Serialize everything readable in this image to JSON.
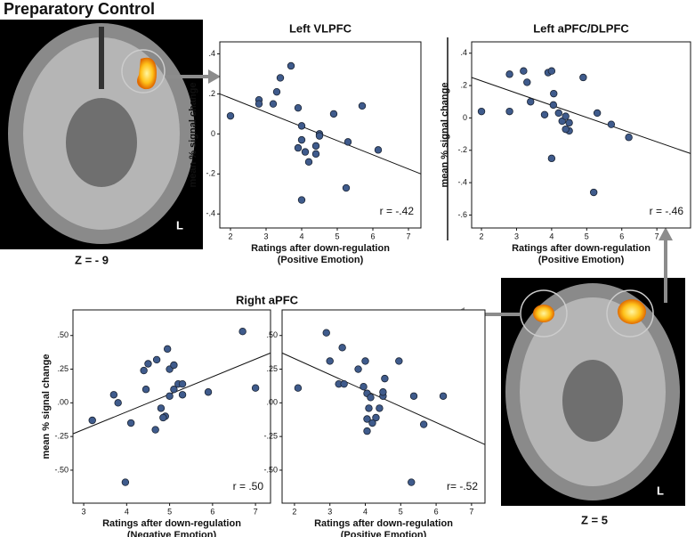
{
  "figure": {
    "title": "Preparatory  Control",
    "group_title": "Right aPFC",
    "brain_labels": [
      "Z = - 9",
      "Z = 5"
    ],
    "side_label": "L"
  },
  "chart_data": [
    {
      "type": "scatter",
      "title": "Left VLPFC",
      "ylabel": "mean % signal change",
      "xlabel": [
        "Ratings after down-regulation",
        "(Positive Emotion)"
      ],
      "annotation": "r = -.42",
      "color": "#3f5b8c",
      "xlim": [
        1.7,
        7.35
      ],
      "xticks": [
        2,
        3,
        4,
        5,
        6,
        7
      ],
      "ylim": [
        -0.47,
        0.46
      ],
      "yticks": [
        {
          "value": 0.4,
          "label": ".4"
        },
        {
          "value": 0.2,
          "label": ".2"
        },
        0,
        {
          "value": -0.2,
          "label": "-.2"
        },
        {
          "value": -0.4,
          "label": "-.4"
        }
      ],
      "x": [
        2.0,
        2.8,
        2.8,
        3.2,
        3.3,
        3.4,
        3.7,
        3.9,
        4.0,
        3.9,
        4.0,
        4.1,
        4.2,
        4.4,
        4.4,
        4.5,
        4.5,
        4.0,
        4.9,
        5.3,
        5.25,
        5.7,
        6.15
      ],
      "values": [
        0.09,
        0.17,
        0.15,
        0.15,
        0.21,
        0.28,
        0.34,
        0.13,
        0.04,
        -0.07,
        -0.03,
        -0.09,
        -0.14,
        -0.1,
        -0.06,
        0,
        -0.01,
        -0.33,
        0.1,
        -0.04,
        -0.27,
        0.14,
        -0.08
      ],
      "fit": {
        "x": [
          1.7,
          7.35
        ],
        "y": [
          0.2,
          -0.2
        ]
      }
    },
    {
      "type": "scatter",
      "title": "Left aPFC/DLPFC",
      "ylabel": "mean % signal change",
      "xlabel": [
        "Ratings after down-regulation",
        "(Positive Emotion)"
      ],
      "annotation": "r = -.46",
      "color": "#3f5b8c",
      "xlim": [
        1.72,
        7.96
      ],
      "xticks": [
        2,
        3,
        4,
        5,
        6,
        7
      ],
      "ylim": [
        -0.68,
        0.47
      ],
      "yticks": [
        {
          "value": 0.4,
          "label": ".4"
        },
        {
          "value": 0.2,
          "label": ".2"
        },
        0,
        {
          "value": -0.2,
          "label": "-.2"
        },
        {
          "value": -0.4,
          "label": "-.4"
        },
        {
          "value": -0.6,
          "label": "-.6"
        }
      ],
      "x": [
        2.0,
        2.8,
        2.8,
        3.2,
        3.3,
        3.4,
        3.9,
        4.0,
        3.8,
        4.05,
        4.06,
        4.0,
        4.2,
        4.3,
        4.4,
        4.5,
        4.5,
        4.4,
        4.9,
        5.3,
        5.2,
        5.7,
        6.2
      ],
      "values": [
        0.04,
        0.27,
        0.04,
        0.29,
        0.22,
        0.1,
        0.28,
        0.29,
        0.02,
        0.08,
        0.15,
        -0.25,
        0.03,
        -0.02,
        0.01,
        -0.03,
        -0.08,
        -0.07,
        0.25,
        0.03,
        -0.46,
        -0.04,
        -0.12
      ],
      "fit": {
        "x": [
          1.72,
          7.96
        ],
        "y": [
          0.25,
          -0.22
        ]
      }
    },
    {
      "type": "scatter",
      "ylabel": "mean % signal change",
      "xlabel": [
        "Ratings after down-regulation",
        "(Negative Emotion)"
      ],
      "annotation": "r = .50",
      "color": "#3f5b8c",
      "xlim": [
        2.75,
        7.35
      ],
      "xticks": [
        3,
        4,
        5,
        6,
        7
      ],
      "ylim": [
        -0.745,
        0.69
      ],
      "yticks": [
        {
          "value": 0.5,
          "label": ".50"
        },
        {
          "value": 0.25,
          "label": ".25"
        },
        {
          "value": 0,
          "label": ".00"
        },
        {
          "value": -0.25,
          "label": "-.25"
        },
        {
          "value": -0.5,
          "label": "-.50"
        }
      ],
      "x": [
        3.2,
        3.7,
        3.8,
        3.97,
        4.1,
        4.4,
        4.5,
        4.45,
        4.67,
        4.7,
        4.8,
        4.9,
        4.85,
        4.95,
        5.0,
        5.0,
        5.1,
        5.1,
        5.2,
        5.3,
        5.3,
        5.9,
        6.7,
        7.0
      ],
      "values": [
        -0.13,
        0.06,
        0.0,
        -0.59,
        -0.15,
        0.24,
        0.29,
        0.1,
        -0.2,
        0.32,
        -0.04,
        -0.1,
        -0.11,
        0.4,
        0.25,
        0.05,
        0.1,
        0.28,
        0.14,
        0.14,
        0.06,
        0.08,
        0.53,
        0.11
      ],
      "fit": {
        "x": [
          2.75,
          7.35
        ],
        "y": [
          -0.23,
          0.37
        ]
      }
    },
    {
      "type": "scatter",
      "xlabel": [
        "Ratings after down-regulation",
        "(Positive Emotion)"
      ],
      "annotation": "r= -.52",
      "color": "#3f5b8c",
      "xlim": [
        1.65,
        7.38
      ],
      "xticks": [
        2,
        3,
        4,
        5,
        6,
        7
      ],
      "ylim": [
        -0.745,
        0.69
      ],
      "yticks": [
        {
          "value": 0.5,
          "label": ".50"
        },
        {
          "value": 0.25,
          "label": ".25"
        },
        {
          "value": 0,
          "label": ".00"
        },
        {
          "value": -0.25,
          "label": "-.25"
        },
        {
          "value": -0.5,
          "label": "-.50"
        }
      ],
      "x": [
        2.1,
        2.9,
        3.0,
        3.25,
        3.35,
        3.4,
        3.8,
        3.95,
        4.0,
        4.05,
        4.1,
        4.15,
        4.05,
        4.3,
        4.4,
        4.5,
        4.5,
        4.05,
        4.2,
        4.55,
        4.95,
        5.3,
        5.37,
        5.65,
        6.2
      ],
      "values": [
        0.11,
        0.52,
        0.31,
        0.14,
        0.41,
        0.14,
        0.25,
        0.12,
        0.31,
        0.07,
        -0.04,
        0.04,
        -0.12,
        -0.11,
        -0.04,
        0.05,
        0.08,
        -0.21,
        -0.15,
        0.18,
        0.31,
        -0.59,
        0.05,
        -0.16,
        0.05
      ],
      "fit": {
        "x": [
          1.65,
          7.38
        ],
        "y": [
          0.37,
          -0.31
        ]
      }
    }
  ]
}
